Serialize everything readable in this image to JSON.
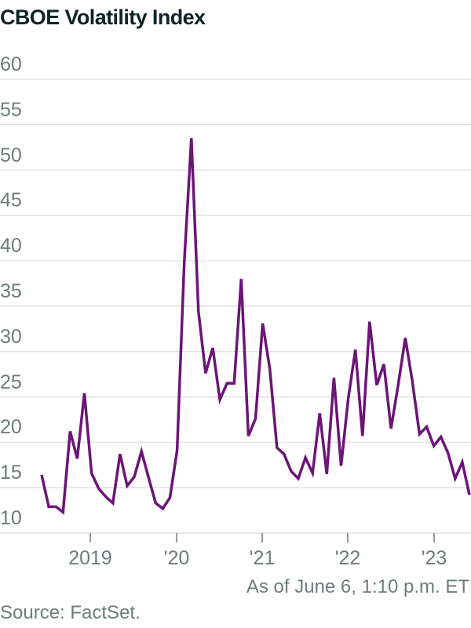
{
  "chart_data": {
    "type": "line",
    "title": "CBOE Volatility Index",
    "xlabel": "",
    "ylabel": "",
    "ylim": [
      10,
      60
    ],
    "yticks": [
      10,
      15,
      20,
      25,
      30,
      35,
      40,
      45,
      50,
      55,
      60
    ],
    "ytick_labels": [
      "10",
      "15",
      "20",
      "25",
      "30",
      "35",
      "40",
      "45",
      "50",
      "55",
      "60"
    ],
    "xtick_labels": [
      "2019",
      "'20",
      "'21",
      "'22",
      "'23"
    ],
    "grid": true,
    "legend": null,
    "series_color": "#6b1577",
    "x_start": "2018-07",
    "x_frequency": "monthly-approx",
    "values": [
      16.4,
      12.9,
      12.9,
      12.3,
      21.2,
      18.2,
      25.4,
      16.6,
      14.9,
      14.0,
      13.3,
      18.7,
      15.2,
      16.2,
      19.0,
      16.1,
      13.3,
      12.7,
      13.9,
      19.1,
      39.8,
      53.5,
      34.4,
      27.6,
      30.4,
      24.7,
      26.5,
      26.5,
      38.0,
      20.7,
      22.6,
      33.1,
      28.1,
      19.4,
      18.7,
      16.8,
      16.0,
      18.3,
      16.6,
      23.2,
      16.5,
      27.1,
      17.4,
      24.8,
      30.2,
      20.7,
      33.3,
      26.3,
      28.6,
      21.5,
      26.3,
      31.5,
      26.7,
      20.9,
      21.7,
      19.6,
      20.6,
      18.8,
      16.0,
      17.8,
      14.2
    ],
    "annotation": "As of June 6, 1:10 p.m. ET",
    "source": "Source: FactSet."
  },
  "header": {
    "title": "CBOE Volatility Index"
  },
  "footer": {
    "note": "As of June 6, 1:10 p.m. ET",
    "source": "Source: FactSet."
  }
}
